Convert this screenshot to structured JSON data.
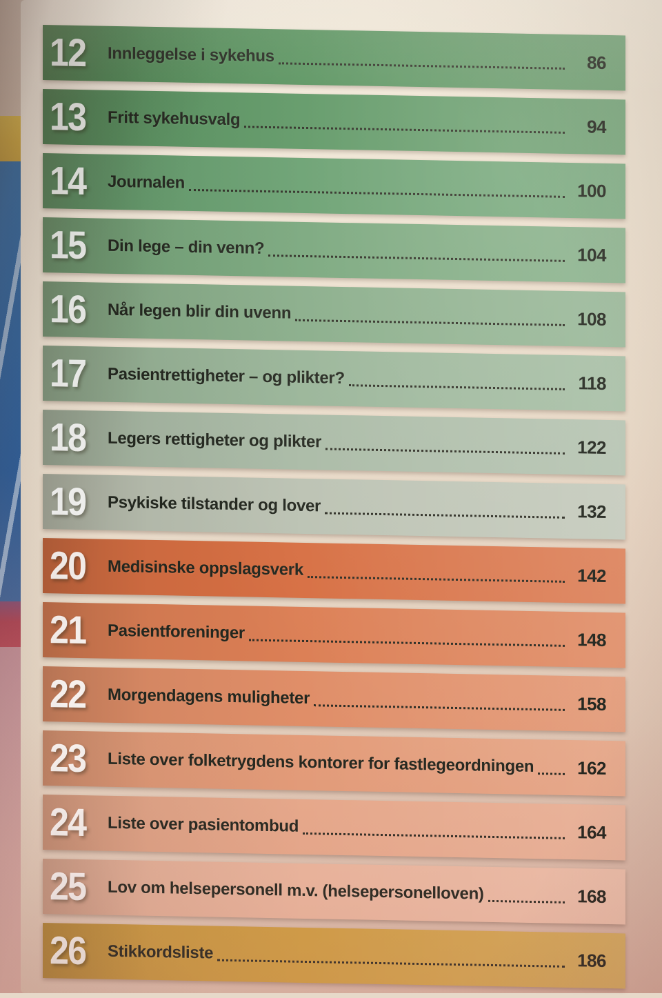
{
  "photo": {
    "description_colors": {
      "paper": "#efe5d5",
      "top_band_yellow": "#f2d572",
      "spine_yellow": "#d6b24c",
      "spine_blue": "#35699f",
      "spine_red": "#b34d5a",
      "spine_pink": "#d2a4a0",
      "text_dark": "#23271f",
      "number_white": "#ffffff"
    }
  },
  "toc": {
    "entries": [
      {
        "number": "12",
        "title": "Innleggelse i sykehus",
        "page": "86",
        "color": "#57925e"
      },
      {
        "number": "13",
        "title": "Fritt sykehusvalg",
        "page": "94",
        "color": "#5d9765"
      },
      {
        "number": "14",
        "title": "Journalen",
        "page": "100",
        "color": "#679f70"
      },
      {
        "number": "15",
        "title": "Din lege – din venn?",
        "page": "104",
        "color": "#77a67c"
      },
      {
        "number": "16",
        "title": "Når legen blir din uvenn",
        "page": "108",
        "color": "#87ac89"
      },
      {
        "number": "17",
        "title": "Pasientrettigheter – og plikter?",
        "page": "118",
        "color": "#98b498"
      },
      {
        "number": "18",
        "title": "Legers rettigheter og plikter",
        "page": "122",
        "color": "#a9baa6"
      },
      {
        "number": "19",
        "title": "Psykiske tilstander og lover",
        "page": "132",
        "color": "#bbc2b3"
      },
      {
        "number": "20",
        "title": "Medisinske oppslagsverk",
        "page": "142",
        "color": "#d76f43"
      },
      {
        "number": "21",
        "title": "Pasientforeninger",
        "page": "148",
        "color": "#dc7f55"
      },
      {
        "number": "22",
        "title": "Morgendagens muligheter",
        "page": "158",
        "color": "#e08e68"
      },
      {
        "number": "23",
        "title": "Liste over folketrygdens kontorer for fastlegeordningen",
        "page": "162",
        "color": "#e49d7a"
      },
      {
        "number": "24",
        "title": "Liste over pasientombud",
        "page": "164",
        "color": "#e8ab8d"
      },
      {
        "number": "25",
        "title": "Lov om helsepersonell m.v. (helsepersonelloven)",
        "page": "168",
        "color": "#ecb9a0"
      },
      {
        "number": "26",
        "title": "Stikkordsliste",
        "page": "186",
        "color": "#d2a245"
      }
    ]
  }
}
